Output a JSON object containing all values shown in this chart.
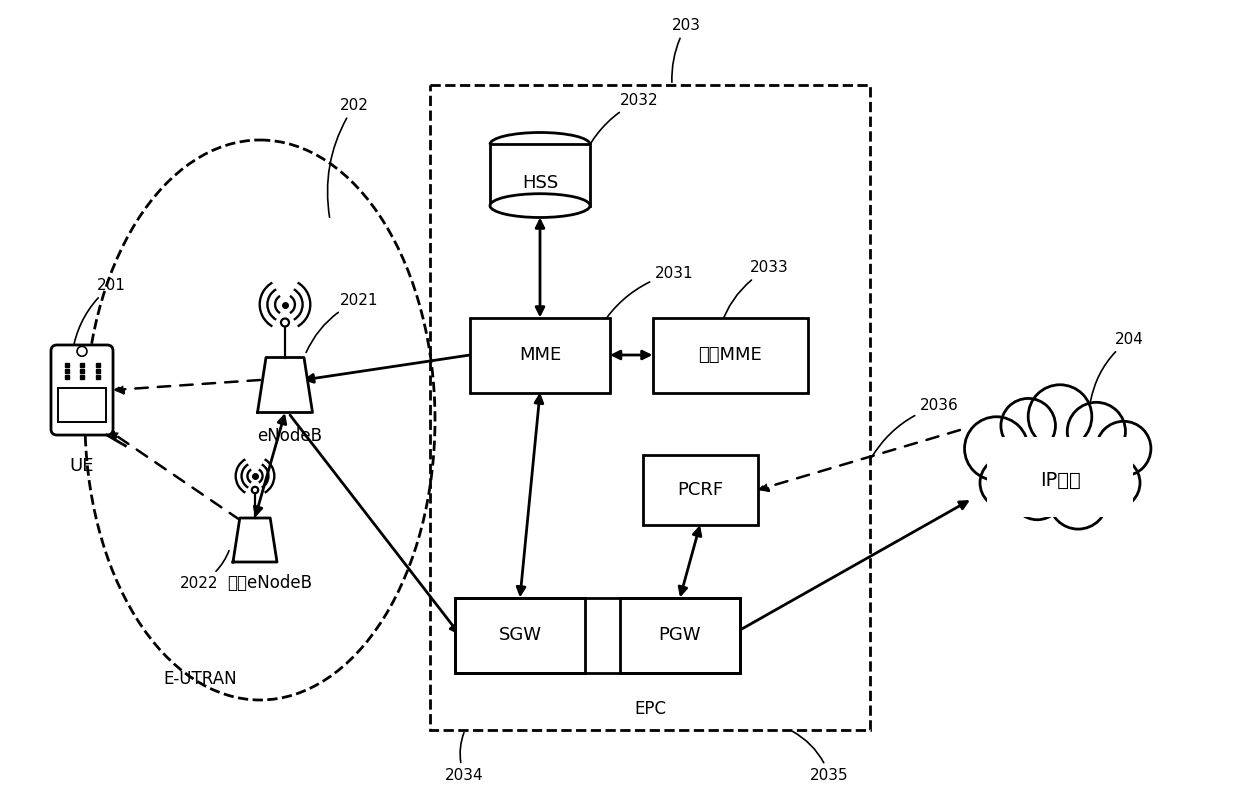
{
  "bg_color": "#ffffff",
  "fig_width": 12.4,
  "fig_height": 7.98,
  "labels": {
    "201": "201",
    "202": "202",
    "203": "203",
    "204": "204",
    "2021": "2021",
    "2022": "2022",
    "2031": "2031",
    "2032": "2032",
    "2033": "2033",
    "2034": "2034",
    "2035": "2035",
    "2036": "2036",
    "UE": "UE",
    "eNodeB": "eNodeB",
    "other_eNodeB": "其它eNodeB",
    "E_UTRAN": "E-UTRAN",
    "HSS": "HSS",
    "MME": "MME",
    "other_MME": "其它MME",
    "PCRF": "PCRF",
    "SGW": "SGW",
    "PGW": "PGW",
    "EPC": "EPC",
    "IP_service": "IP业务"
  }
}
